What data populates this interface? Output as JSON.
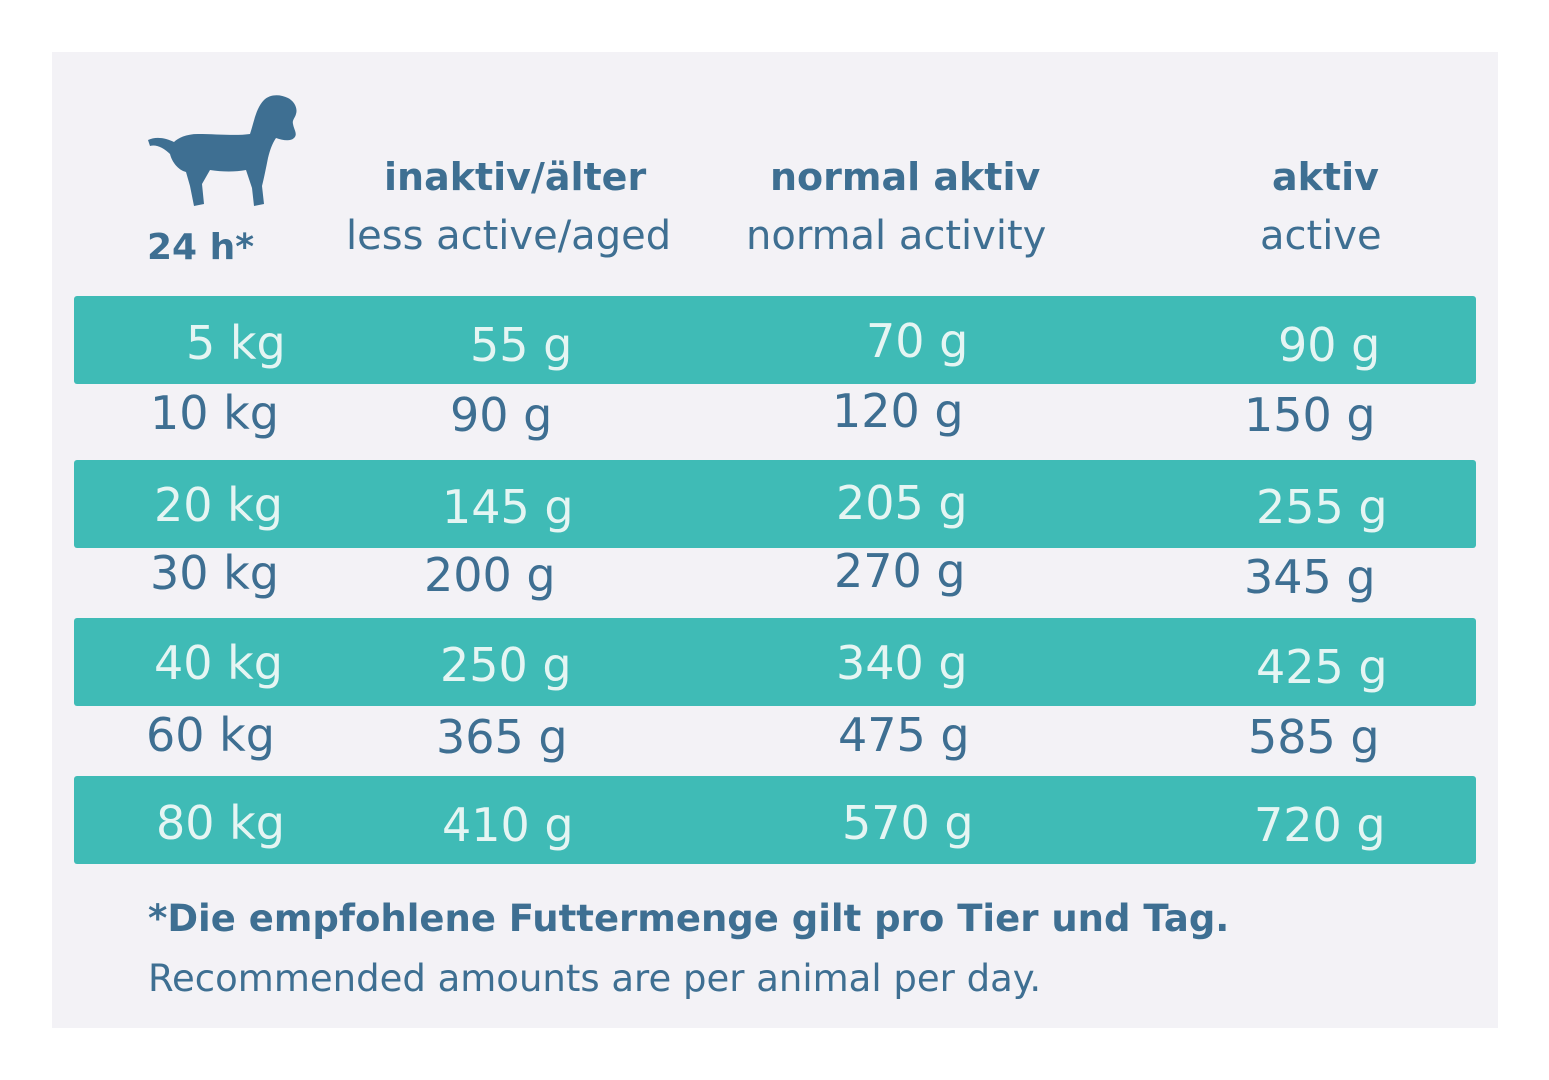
{
  "header": {
    "time_label": "24 h*",
    "columns": [
      {
        "de": "inaktiv/älter",
        "en": "less active/aged"
      },
      {
        "de": "normal aktiv",
        "en": "normal activity"
      },
      {
        "de": "aktiv",
        "en": "active"
      }
    ]
  },
  "rows": [
    {
      "weight": "5 kg",
      "values": [
        "55 g",
        "70 g",
        "90 g"
      ]
    },
    {
      "weight": "10 kg",
      "values": [
        "90 g",
        "120 g",
        "150 g"
      ]
    },
    {
      "weight": "20 kg",
      "values": [
        "145 g",
        "205 g",
        "255 g"
      ]
    },
    {
      "weight": "30 kg",
      "values": [
        "200 g",
        "270 g",
        "345 g"
      ]
    },
    {
      "weight": "40 kg",
      "values": [
        "250 g",
        "340 g",
        "425 g"
      ]
    },
    {
      "weight": "60 kg",
      "values": [
        "365 g",
        "475 g",
        "585 g"
      ]
    },
    {
      "weight": "80 kg",
      "values": [
        "410 g",
        "570 g",
        "720 g"
      ]
    }
  ],
  "footnote": {
    "de": "*Die empfohlene Futtermenge gilt pro Tier und Tag.",
    "en": "Recommended amounts are per animal per day."
  },
  "colors": {
    "text": "#3e6f92",
    "band": "#3fbbb6",
    "band_text": "#e5f5f3",
    "card": "#f3f2f6"
  },
  "icon": "dog-icon"
}
